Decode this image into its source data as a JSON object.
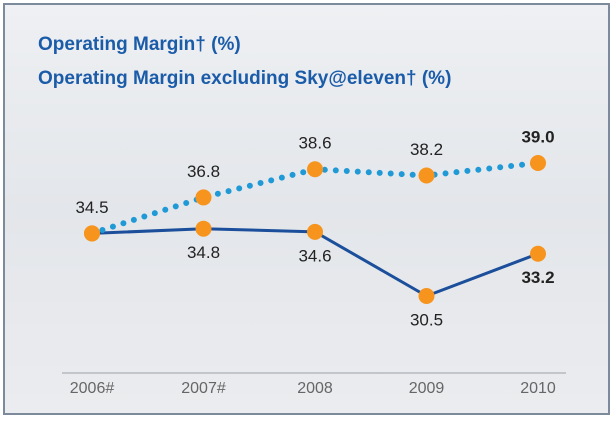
{
  "chart_data": {
    "type": "line",
    "title": "Operating Margin† (%)",
    "subtitle": "Operating Margin excluding Sky@eleven† (%)",
    "categories": [
      "2006#",
      "2007#",
      "2008",
      "2009",
      "2010"
    ],
    "series": [
      {
        "name": "Operating Margin† (%)",
        "color": "#1b4f9b",
        "style": "solid",
        "values": [
          34.5,
          34.8,
          34.6,
          30.5,
          33.2
        ],
        "value_labels": [
          null,
          "34.8",
          "34.6",
          "30.5",
          "33.2"
        ]
      },
      {
        "name": "Operating Margin excluding Sky@eleven† (%)",
        "color": "#1f9ad6",
        "style": "dotted",
        "values": [
          34.5,
          36.8,
          38.6,
          38.2,
          39.0
        ],
        "value_labels": [
          "34.5",
          "36.8",
          "38.6",
          "38.2",
          "39.0"
        ]
      }
    ],
    "marker_color": "#f7941d"
  }
}
